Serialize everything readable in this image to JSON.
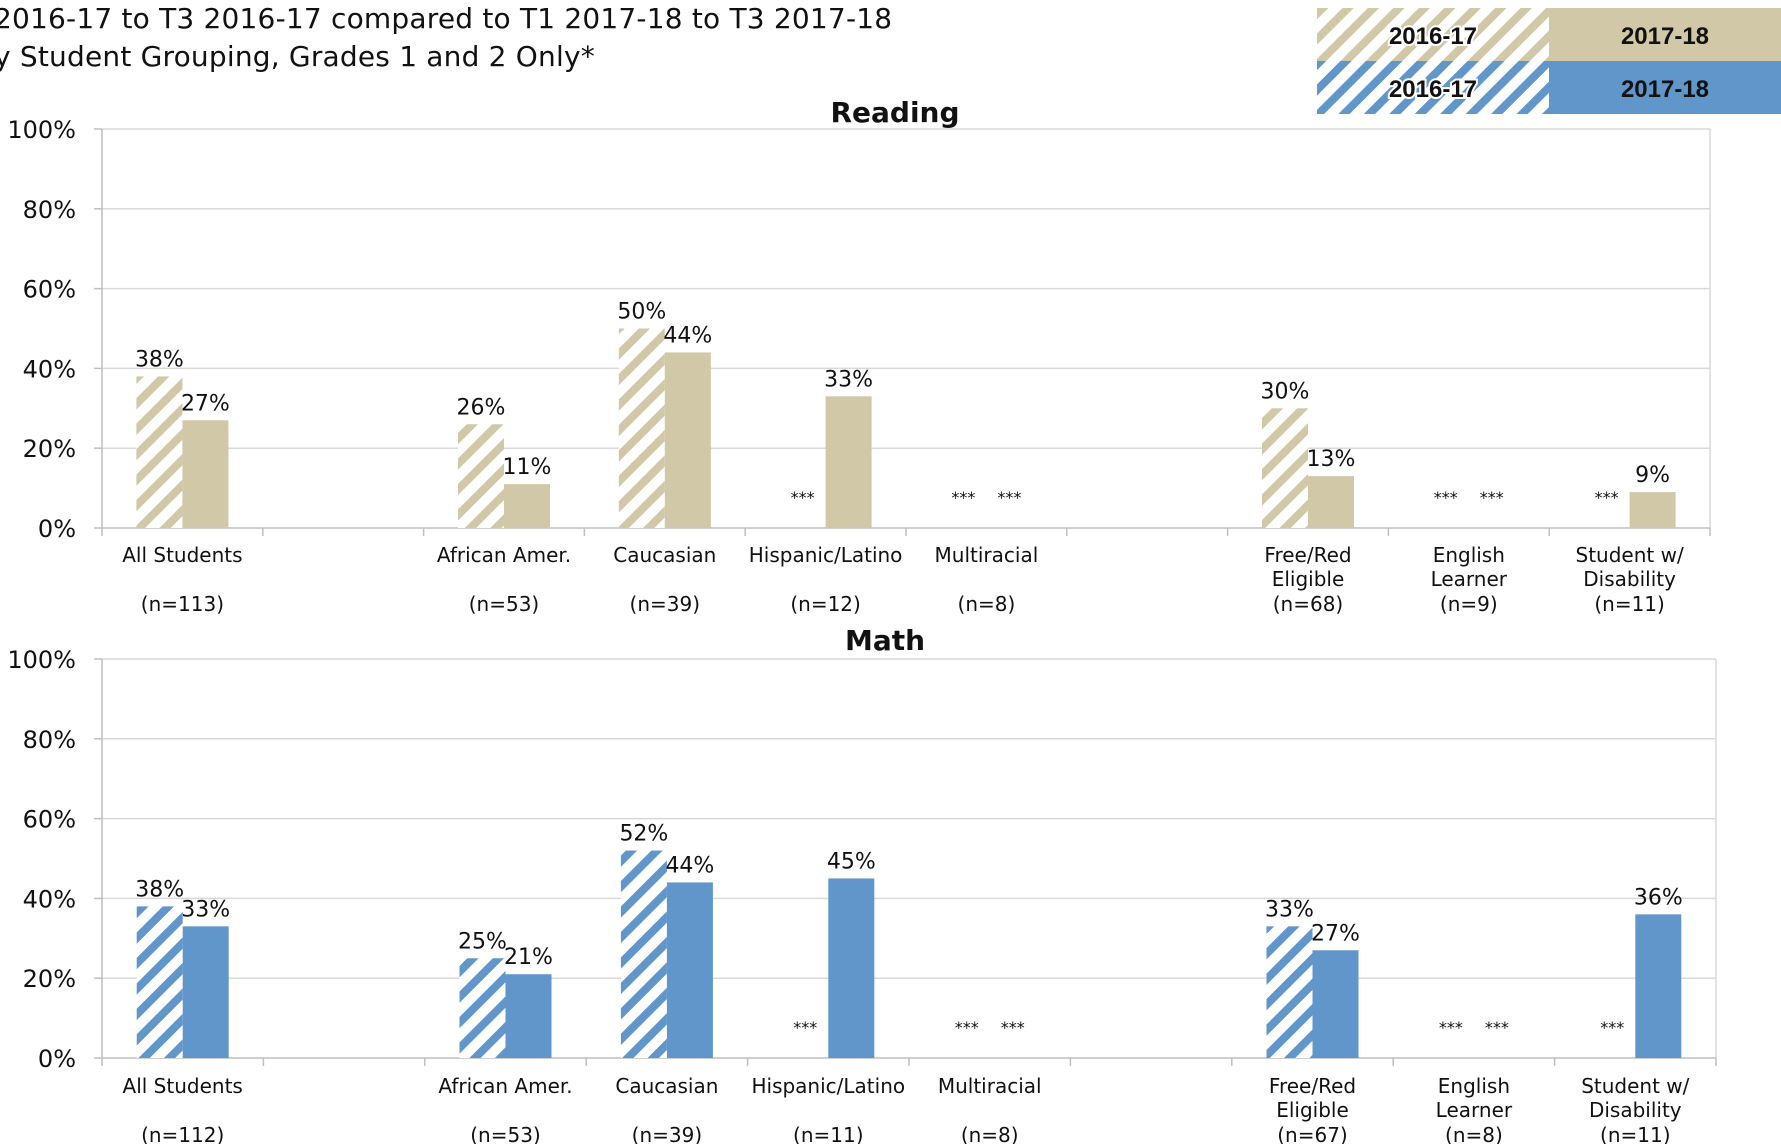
{
  "title": {
    "line1": "2016-17 to T3 2016-17 compared to T1 2017-18 to T3 2017-18",
    "line2": "y Student Grouping, Grades 1 and 2 Only*"
  },
  "legend": {
    "rows": [
      {
        "left": "2016-17",
        "right": "2017-18",
        "color": "#d0c8a6"
      },
      {
        "left": "2016-17",
        "right": "2017-18",
        "color": "#6196cb"
      }
    ]
  },
  "colors": {
    "reading": "#d0c8a6",
    "math": "#6196cb",
    "grid": "#d9d9d9",
    "axis": "#bfbfbf"
  },
  "chart_data": [
    {
      "type": "bar",
      "title": "Reading",
      "ylim": [
        0,
        100
      ],
      "yticks": [
        "0%",
        "20%",
        "40%",
        "60%",
        "80%",
        "100%"
      ],
      "grid": true,
      "categories": [
        {
          "label": [
            "All Students"
          ],
          "n": "(n=113)"
        },
        {
          "label": [
            ""
          ],
          "n": ""
        },
        {
          "label": [
            "African Amer."
          ],
          "n": "(n=53)"
        },
        {
          "label": [
            "Caucasian"
          ],
          "n": "(n=39)"
        },
        {
          "label": [
            "Hispanic/Latino"
          ],
          "n": "(n=12)"
        },
        {
          "label": [
            "Multiracial"
          ],
          "n": "(n=8)"
        },
        {
          "label": [
            ""
          ],
          "n": ""
        },
        {
          "label": [
            "Free/Red",
            "Eligible"
          ],
          "n": "(n=68)"
        },
        {
          "label": [
            "English",
            "Learner"
          ],
          "n": "(n=9)"
        },
        {
          "label": [
            "Student w/",
            "Disability"
          ],
          "n": "(n=11)"
        }
      ],
      "series": [
        {
          "period": "2016-17",
          "values": [
            38,
            null,
            26,
            50,
            null,
            null,
            null,
            30,
            null,
            null
          ],
          "labels": [
            "38%",
            "",
            "26%",
            "50%",
            "***",
            "***",
            "",
            "30%",
            "***",
            "***"
          ]
        },
        {
          "period": "2017-18",
          "values": [
            27,
            null,
            11,
            44,
            33,
            null,
            null,
            13,
            null,
            9
          ],
          "labels": [
            "27%",
            "",
            "11%",
            "44%",
            "33%",
            "***",
            "",
            "13%",
            "***",
            "9%"
          ]
        }
      ]
    },
    {
      "type": "bar",
      "title": "Math",
      "ylim": [
        0,
        100
      ],
      "yticks": [
        "0%",
        "20%",
        "40%",
        "60%",
        "80%",
        "100%"
      ],
      "grid": true,
      "categories": [
        {
          "label": [
            "All Students"
          ],
          "n": "(n=112)"
        },
        {
          "label": [
            ""
          ],
          "n": ""
        },
        {
          "label": [
            "African Amer."
          ],
          "n": "(n=53)"
        },
        {
          "label": [
            "Caucasian"
          ],
          "n": "(n=39)"
        },
        {
          "label": [
            "Hispanic/Latino"
          ],
          "n": "(n=11)"
        },
        {
          "label": [
            "Multiracial"
          ],
          "n": "(n=8)"
        },
        {
          "label": [
            ""
          ],
          "n": ""
        },
        {
          "label": [
            "Free/Red",
            "Eligible"
          ],
          "n": "(n=67)"
        },
        {
          "label": [
            "English",
            "Learner"
          ],
          "n": "(n=8)"
        },
        {
          "label": [
            "Student w/",
            "Disability"
          ],
          "n": "(n=11)"
        }
      ],
      "series": [
        {
          "period": "2016-17",
          "values": [
            38,
            null,
            25,
            52,
            null,
            null,
            null,
            33,
            null,
            null
          ],
          "labels": [
            "38%",
            "",
            "25%",
            "52%",
            "***",
            "***",
            "",
            "33%",
            "***",
            "***"
          ]
        },
        {
          "period": "2017-18",
          "values": [
            33,
            null,
            21,
            44,
            45,
            null,
            null,
            27,
            null,
            36
          ],
          "labels": [
            "33%",
            "",
            "21%",
            "44%",
            "45%",
            "***",
            "",
            "27%",
            "***",
            "36%"
          ]
        }
      ]
    }
  ]
}
